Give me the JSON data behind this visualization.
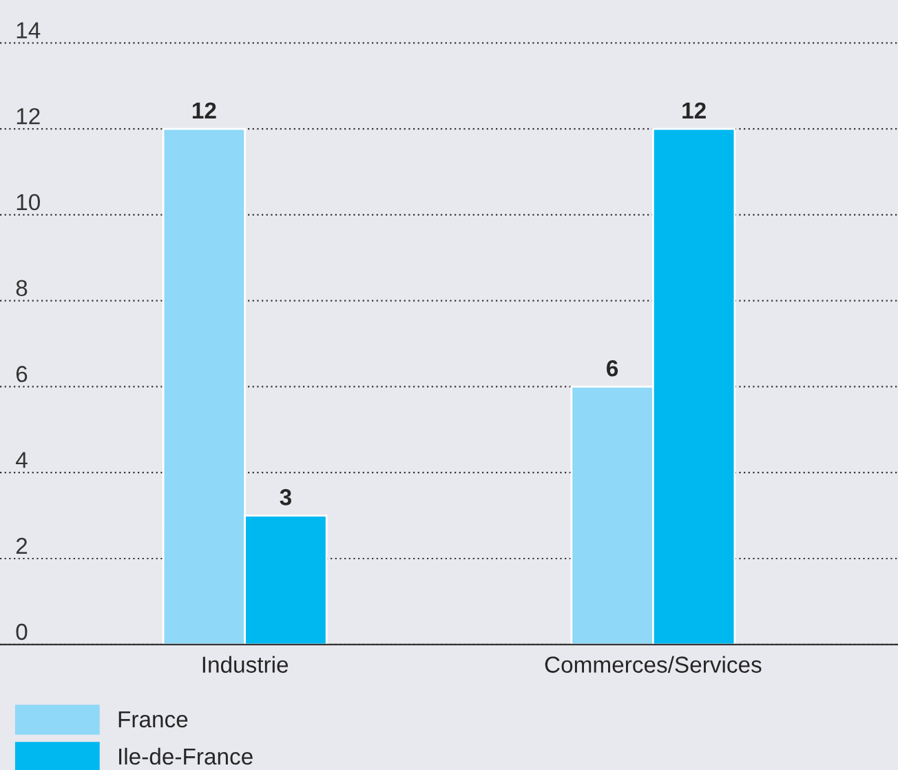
{
  "chart_data": {
    "type": "bar",
    "categories": [
      "Industrie",
      "Commerces/Services"
    ],
    "series": [
      {
        "name": "France",
        "color": "#8fd8f7",
        "values": [
          12,
          6
        ]
      },
      {
        "name": "Ile-de-France",
        "color": "#00b8f0",
        "values": [
          3,
          12
        ]
      }
    ],
    "ylim": [
      0,
      15
    ],
    "yticks": [
      0,
      2,
      4,
      6,
      8,
      10,
      12,
      14
    ],
    "grid": "y",
    "legend": "bottom left",
    "data_labels": true
  }
}
